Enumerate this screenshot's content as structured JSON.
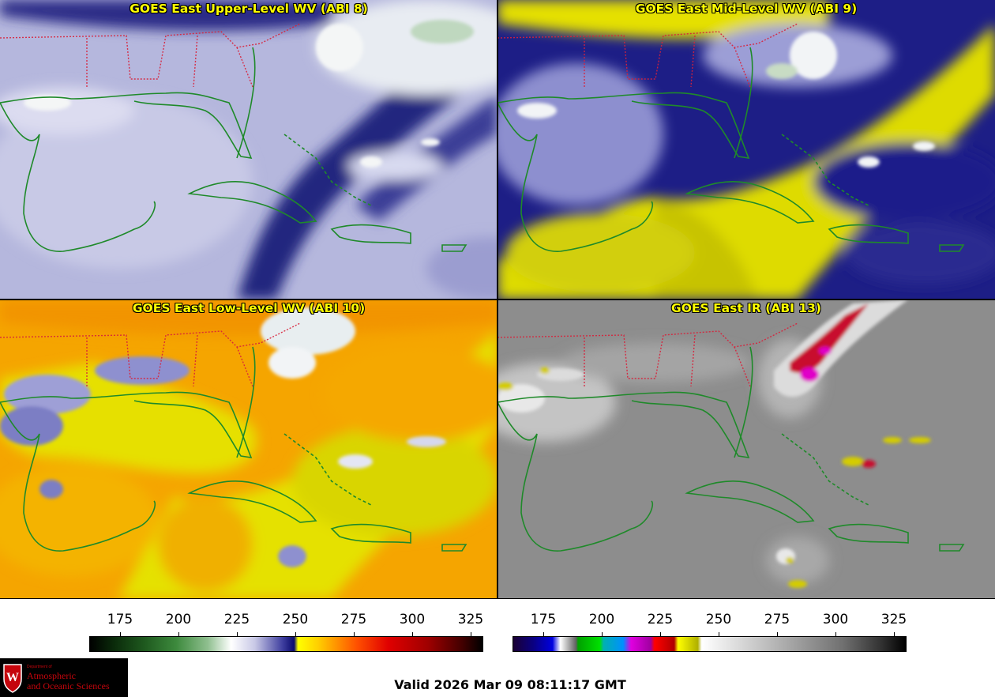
{
  "panels": [
    {
      "title": "GOES East Upper-Level WV (ABI 8)"
    },
    {
      "title": "GOES East Mid-Level WV (ABI 9)"
    },
    {
      "title": "GOES East Low-Level WV (ABI 10)"
    },
    {
      "title": "GOES East IR (ABI 13)"
    }
  ],
  "colorbars": {
    "wv": {
      "ticks": [
        "175",
        "200",
        "225",
        "250",
        "275",
        "300",
        "325"
      ]
    },
    "ir": {
      "ticks": [
        "175",
        "200",
        "225",
        "250",
        "275",
        "300",
        "325"
      ]
    }
  },
  "valid_time": "Valid 2026 Mar 09 08:11:17 GMT",
  "logo": {
    "dept": "Department of",
    "line1": "Atmospheric",
    "line2": "and Oceanic Sciences",
    "crest_letter": "W"
  },
  "colors": {
    "title": "#ffff00",
    "coastline": "#1f8a2a",
    "state_borders": "#ff2a2a",
    "logo_red": "#c5050c"
  }
}
